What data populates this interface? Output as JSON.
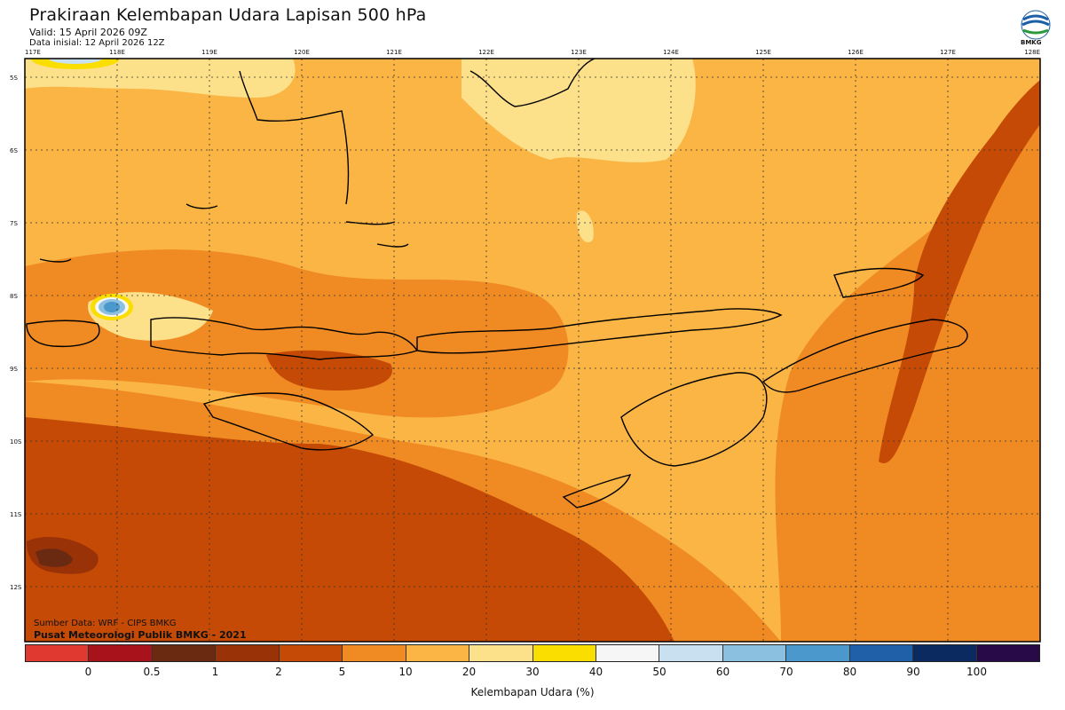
{
  "header": {
    "title": "Prakiraan Kelembapan Udara Lapisan 500 hPa",
    "valid": "Valid: 15 April 2026 09Z",
    "init": "Data inisial: 12 April 2026 12Z",
    "logo_text": "BMKG"
  },
  "axes": {
    "lon_labels": [
      "117E",
      "118E",
      "119E",
      "120E",
      "121E",
      "122E",
      "123E",
      "124E",
      "125E",
      "126E",
      "127E",
      "128E"
    ],
    "lat_labels": [
      "5S",
      "6S",
      "7S",
      "8S",
      "9S",
      "10S",
      "11S",
      "12S"
    ]
  },
  "legend": {
    "title": "Kelembapan Udara (%)",
    "ticks": [
      "0",
      "0.5",
      "1",
      "2",
      "5",
      "10",
      "20",
      "30",
      "40",
      "50",
      "60",
      "70",
      "80",
      "90",
      "100"
    ],
    "colors": [
      "#e03a30",
      "#a8121a",
      "#6a2a12",
      "#9a3208",
      "#c44a06",
      "#f08a22",
      "#fbb545",
      "#fde08a",
      "#fade00",
      "#f6f6f6",
      "#c8e0f0",
      "#8cc0e0",
      "#4a98cc",
      "#2060a8",
      "#0a2a60",
      "#280a48"
    ]
  },
  "credits": {
    "source": "Sumber Data: WRF - CIPS BMKG",
    "publisher": "Pusat Meteorologi Publik BMKG - 2021"
  }
}
